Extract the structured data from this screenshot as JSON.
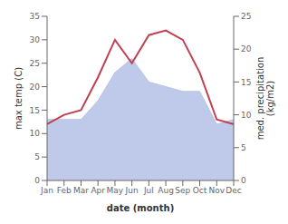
{
  "chart_data": {
    "type": "line",
    "categories": [
      "Jan",
      "Feb",
      "Mar",
      "Apr",
      "May",
      "Jun",
      "Jul",
      "Aug",
      "Sep",
      "Oct",
      "Nov",
      "Dec"
    ],
    "series": [
      {
        "type": "area",
        "color": "#b8c4e8",
        "values": [
          13,
          13,
          13,
          17,
          23,
          26,
          21,
          20,
          19,
          19,
          12,
          13
        ]
      },
      {
        "type": "line",
        "color": "#c04050",
        "values": [
          12,
          14,
          15,
          22,
          30,
          25,
          31,
          32,
          30,
          23,
          13,
          12
        ]
      }
    ],
    "ylim": [
      0,
      35
    ],
    "yticks": [
      0,
      5,
      10,
      15,
      20,
      25,
      30,
      35
    ],
    "y2lim": [
      0,
      25
    ],
    "y2ticks": [
      0,
      5,
      10,
      15,
      20,
      25
    ],
    "xlabel": "date (month)",
    "ylabel": "max temp (C)",
    "y2label": "med. precipitation\n(kg/m2)"
  }
}
